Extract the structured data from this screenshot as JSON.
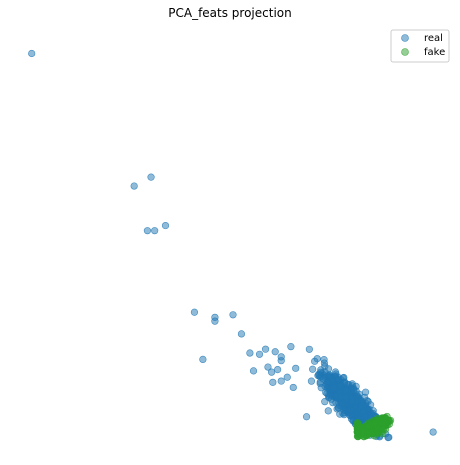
{
  "chart_data": {
    "type": "scatter",
    "title": "PCA_feats projection",
    "xlabel": "",
    "ylabel": "",
    "axes_visible": false,
    "grid": false,
    "legend_position": "top-right",
    "series": [
      {
        "name": "real",
        "color": "#1f77b4",
        "alpha": 0.5,
        "points": [
          [
            -2.27,
            2.9
          ],
          [
            -1.42,
            1.86
          ],
          [
            -1.28,
            1.93
          ],
          [
            -1.31,
            1.51
          ],
          [
            -1.25,
            1.51
          ],
          [
            -1.16,
            1.55
          ],
          [
            -0.92,
            0.87
          ],
          [
            -0.75,
            0.83
          ],
          [
            -0.75,
            0.8
          ],
          [
            -0.6,
            0.85
          ],
          [
            -0.53,
            0.7
          ],
          [
            -0.85,
            0.5
          ],
          [
            -0.46,
            0.55
          ],
          [
            -0.38,
            0.54
          ],
          [
            -0.33,
            0.58
          ],
          [
            -0.25,
            0.56
          ],
          [
            -0.2,
            0.52
          ],
          [
            -0.2,
            0.49
          ],
          [
            -0.12,
            0.6
          ],
          [
            -0.43,
            0.41
          ],
          [
            -0.31,
            0.44
          ],
          [
            -0.28,
            0.4
          ],
          [
            -0.23,
            0.42
          ],
          [
            -0.15,
            0.36
          ],
          [
            -0.08,
            0.43
          ],
          [
            -0.27,
            0.32
          ],
          [
            -0.2,
            0.33
          ],
          [
            -0.1,
            0.28
          ],
          [
            0.01,
            0.05
          ],
          [
            1.06,
            -0.07
          ]
        ],
        "cluster": {
          "description_free": true,
          "center": [
            0.38,
            0.16
          ],
          "spread_along": [
            0.35,
            -0.35
          ],
          "count": 700
        }
      },
      {
        "name": "fake",
        "color": "#2ca02c",
        "alpha": 0.5,
        "cluster": {
          "center": [
            0.58,
            -0.03
          ],
          "count": 400
        }
      }
    ],
    "xlim": [
      -2.45,
      1.2
    ],
    "ylim": [
      -0.25,
      3.1
    ]
  }
}
